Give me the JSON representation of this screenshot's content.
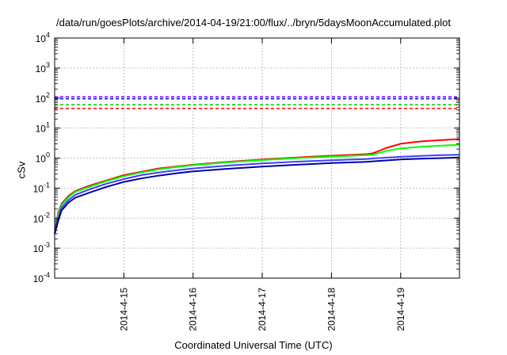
{
  "chart_data": {
    "type": "line",
    "title": "/data/run/goesPlots/archive/2014-04-19/21:00/flux/../bryn/5daysMoonAccumulated.plot",
    "xlabel": "Coordinated Universal Time (UTC)",
    "ylabel": "cSv",
    "y_scale": "log",
    "ylim": [
      0.0001,
      10000
    ],
    "xlim": [
      0,
      5.85
    ],
    "grid": true,
    "legend": "none",
    "x_tick_labels": [
      {
        "x": 1,
        "label": "2014-4-15"
      },
      {
        "x": 2,
        "label": "2014-4-16"
      },
      {
        "x": 3,
        "label": "2014-4-17"
      },
      {
        "x": 4,
        "label": "2014-4-18"
      },
      {
        "x": 5,
        "label": "2014-4-19"
      }
    ],
    "y_tick_labels": [
      {
        "y": 0.0001,
        "base": "10",
        "exp": "-4"
      },
      {
        "y": 0.001,
        "base": "10",
        "exp": "-3"
      },
      {
        "y": 0.01,
        "base": "10",
        "exp": "-2"
      },
      {
        "y": 0.1,
        "base": "10",
        "exp": "-1"
      },
      {
        "y": 1,
        "base": "10",
        "exp": "0"
      },
      {
        "y": 10,
        "base": "10",
        "exp": "1"
      },
      {
        "y": 100,
        "base": "10",
        "exp": "2"
      },
      {
        "y": 1000,
        "base": "10",
        "exp": "3"
      },
      {
        "y": 10000,
        "base": "10",
        "exp": "4"
      }
    ],
    "thresholds": [
      {
        "color": "#7f00ff",
        "y": 110
      },
      {
        "color": "#0000ff",
        "y": 95
      },
      {
        "color": "#00cc00",
        "y": 60
      },
      {
        "color": "#ff0000",
        "y": 45
      }
    ],
    "series": [
      {
        "color": "#ff0000",
        "points": [
          [
            0.0,
            0.003
          ],
          [
            0.05,
            0.015
          ],
          [
            0.1,
            0.03
          ],
          [
            0.2,
            0.055
          ],
          [
            0.3,
            0.08
          ],
          [
            0.5,
            0.12
          ],
          [
            0.75,
            0.18
          ],
          [
            1.0,
            0.27
          ],
          [
            1.25,
            0.35
          ],
          [
            1.5,
            0.45
          ],
          [
            1.75,
            0.52
          ],
          [
            2.0,
            0.6
          ],
          [
            2.5,
            0.75
          ],
          [
            3.0,
            0.9
          ],
          [
            3.5,
            1.05
          ],
          [
            4.0,
            1.2
          ],
          [
            4.5,
            1.35
          ],
          [
            4.6,
            1.45
          ],
          [
            4.8,
            2.2
          ],
          [
            5.0,
            3.0
          ],
          [
            5.3,
            3.6
          ],
          [
            5.6,
            4.0
          ],
          [
            5.85,
            4.3
          ]
        ]
      },
      {
        "color": "#00ff00",
        "points": [
          [
            0.0,
            0.003
          ],
          [
            0.05,
            0.013
          ],
          [
            0.1,
            0.027
          ],
          [
            0.2,
            0.05
          ],
          [
            0.3,
            0.075
          ],
          [
            0.5,
            0.11
          ],
          [
            0.75,
            0.17
          ],
          [
            1.0,
            0.25
          ],
          [
            1.25,
            0.33
          ],
          [
            1.5,
            0.42
          ],
          [
            1.75,
            0.5
          ],
          [
            2.0,
            0.58
          ],
          [
            2.5,
            0.72
          ],
          [
            3.0,
            0.86
          ],
          [
            3.5,
            1.0
          ],
          [
            4.0,
            1.12
          ],
          [
            4.5,
            1.25
          ],
          [
            4.6,
            1.3
          ],
          [
            4.8,
            1.75
          ],
          [
            5.0,
            2.1
          ],
          [
            5.3,
            2.4
          ],
          [
            5.6,
            2.6
          ],
          [
            5.85,
            2.8
          ]
        ]
      },
      {
        "color": "#4040ff",
        "points": [
          [
            0.0,
            0.003
          ],
          [
            0.05,
            0.01
          ],
          [
            0.1,
            0.022
          ],
          [
            0.2,
            0.04
          ],
          [
            0.3,
            0.06
          ],
          [
            0.5,
            0.09
          ],
          [
            0.75,
            0.14
          ],
          [
            1.0,
            0.2
          ],
          [
            1.25,
            0.27
          ],
          [
            1.5,
            0.33
          ],
          [
            1.75,
            0.39
          ],
          [
            2.0,
            0.45
          ],
          [
            2.5,
            0.56
          ],
          [
            3.0,
            0.66
          ],
          [
            3.5,
            0.76
          ],
          [
            4.0,
            0.85
          ],
          [
            4.5,
            0.93
          ],
          [
            4.6,
            0.97
          ],
          [
            4.8,
            1.04
          ],
          [
            5.0,
            1.1
          ],
          [
            5.3,
            1.18
          ],
          [
            5.6,
            1.25
          ],
          [
            5.85,
            1.3
          ]
        ]
      },
      {
        "color": "#0000aa",
        "points": [
          [
            0.0,
            0.003
          ],
          [
            0.05,
            0.008
          ],
          [
            0.1,
            0.018
          ],
          [
            0.2,
            0.033
          ],
          [
            0.3,
            0.048
          ],
          [
            0.5,
            0.07
          ],
          [
            0.75,
            0.11
          ],
          [
            1.0,
            0.16
          ],
          [
            1.25,
            0.21
          ],
          [
            1.5,
            0.26
          ],
          [
            1.75,
            0.31
          ],
          [
            2.0,
            0.36
          ],
          [
            2.5,
            0.44
          ],
          [
            3.0,
            0.52
          ],
          [
            3.5,
            0.6
          ],
          [
            4.0,
            0.68
          ],
          [
            4.5,
            0.75
          ],
          [
            4.6,
            0.78
          ],
          [
            4.8,
            0.84
          ],
          [
            5.0,
            0.9
          ],
          [
            5.3,
            0.95
          ],
          [
            5.6,
            1.0
          ],
          [
            5.85,
            1.05
          ]
        ]
      }
    ]
  }
}
